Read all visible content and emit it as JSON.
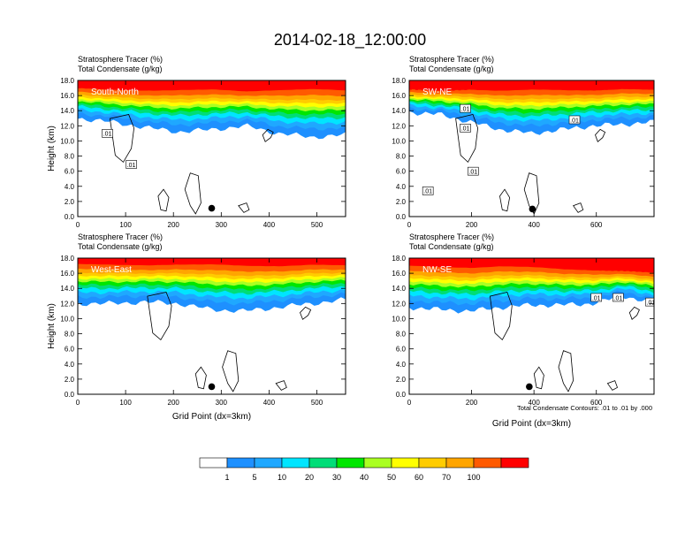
{
  "title": "2014-02-18_12:00:00",
  "chart_data": [
    {
      "type": "heatmap",
      "title_line1": "Stratosphere Tracer   (%)",
      "title_line2": "Total Condensate   (g/kg)",
      "panel_label": "South-North",
      "ylabel": "Height (km)",
      "xlabel": "",
      "xlim": [
        0,
        560
      ],
      "ylim": [
        0,
        18
      ],
      "x_ticks": [
        0,
        100,
        200,
        300,
        400,
        500
      ],
      "y_ticks": [
        "0.0",
        "2.0",
        "4.0",
        "6.0",
        "8.0",
        "10.0",
        "12.0",
        "14.0",
        "16.0",
        "18.0"
      ],
      "marker_x": 280,
      "marker_y": 1.1,
      "contour_labels": [
        {
          "text": ".01",
          "x": 62,
          "y": 11.0
        },
        {
          "text": ".01",
          "x": 112,
          "y": 6.9
        }
      ],
      "tracer_top_km": [
        17.2,
        17.0,
        16.9,
        17.0,
        17.1,
        16.8,
        17.0,
        17.2,
        17.0
      ],
      "tracer_base_km": [
        13.0,
        12.5,
        11.8,
        11.2,
        11.5,
        12.0,
        11.0,
        10.5,
        10.8
      ]
    },
    {
      "type": "heatmap",
      "title_line1": "Stratosphere Tracer   (%)",
      "title_line2": "Total Condensate   (g/kg)",
      "panel_label": "SW-NE",
      "ylabel": "",
      "xlabel": "",
      "xlim": [
        0,
        785
      ],
      "ylim": [
        0,
        18
      ],
      "x_ticks": [
        0,
        200,
        400,
        600
      ],
      "y_ticks": [
        "0.0",
        "2.0",
        "4.0",
        "6.0",
        "8.0",
        "10.0",
        "12.0",
        "14.0",
        "16.0",
        "18.0"
      ],
      "marker_x": 395,
      "marker_y": 1.0,
      "contour_labels": [
        {
          "text": ".01",
          "x": 180,
          "y": 11.7
        },
        {
          "text": ".01",
          "x": 530,
          "y": 12.8
        },
        {
          "text": ".01",
          "x": 180,
          "y": 14.3
        },
        {
          "text": ".01",
          "x": 205,
          "y": 6.0
        },
        {
          "text": ".01",
          "x": 60,
          "y": 3.4
        }
      ],
      "tracer_top_km": [
        17.0,
        16.8,
        17.0,
        16.9,
        17.1,
        17.0,
        16.9,
        17.1,
        17.0
      ],
      "tracer_base_km": [
        13.8,
        13.5,
        12.5,
        11.5,
        11.0,
        11.5,
        12.0,
        12.2,
        12.5
      ]
    },
    {
      "type": "heatmap",
      "title_line1": "Stratosphere Tracer   (%)",
      "title_line2": "Total Condensate   (g/kg)",
      "panel_label": "West-East",
      "ylabel": "Height (km)",
      "xlabel": "Grid Point (dx=3km)",
      "xlim": [
        0,
        560
      ],
      "ylim": [
        0,
        18
      ],
      "x_ticks": [
        0,
        100,
        200,
        300,
        400,
        500
      ],
      "y_ticks": [
        "0.0",
        "2.0",
        "4.0",
        "6.0",
        "8.0",
        "10.0",
        "12.0",
        "14.0",
        "16.0",
        "18.0"
      ],
      "marker_x": 280,
      "marker_y": 1.0,
      "contour_labels": [],
      "tracer_top_km": [
        17.5,
        17.4,
        17.3,
        17.4,
        17.5,
        17.3,
        17.2,
        17.4,
        17.3
      ],
      "tracer_base_km": [
        12.0,
        12.0,
        12.2,
        12.0,
        11.2,
        11.0,
        11.5,
        12.0,
        12.5
      ]
    },
    {
      "type": "heatmap",
      "title_line1": "Stratosphere Tracer   (%)",
      "title_line2": "Total Condensate   (g/kg)",
      "panel_label": "NW-SE",
      "ylabel": "",
      "xlabel": "Grid Point (dx=3km)",
      "xlim": [
        0,
        785
      ],
      "ylim": [
        0,
        18
      ],
      "x_ticks": [
        0,
        200,
        400,
        600
      ],
      "y_ticks": [
        "0.0",
        "2.0",
        "4.0",
        "6.0",
        "8.0",
        "10.0",
        "12.0",
        "14.0",
        "16.0",
        "18.0"
      ],
      "marker_x": 385,
      "marker_y": 1.0,
      "contour_labels": [
        {
          "text": ".01",
          "x": 600,
          "y": 12.8
        },
        {
          "text": ".01",
          "x": 670,
          "y": 12.8
        },
        {
          "text": ".01",
          "x": 775,
          "y": 12.2
        }
      ],
      "tracer_top_km": [
        17.3,
        17.1,
        17.0,
        17.2,
        17.1,
        16.8,
        16.6,
        16.5,
        16.3
      ],
      "tracer_base_km": [
        11.5,
        11.2,
        11.0,
        11.5,
        11.8,
        11.8,
        12.0,
        13.0,
        12.0
      ]
    }
  ],
  "footnote": "Total Condensate Contours: .01 to .01 by .000",
  "colorbar": {
    "labels": [
      "1",
      "5",
      "10",
      "20",
      "30",
      "40",
      "50",
      "60",
      "70",
      "100"
    ],
    "colors": [
      "#ffffff",
      "#1e90ff",
      "#1fa8ff",
      "#00e5ff",
      "#00dd77",
      "#00e600",
      "#aaff22",
      "#ffff00",
      "#ffcc00",
      "#ffa500",
      "#ff5a00",
      "#ff0000"
    ]
  }
}
